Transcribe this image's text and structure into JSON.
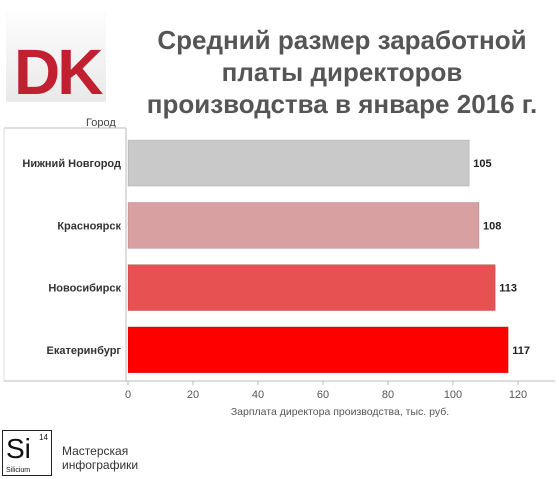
{
  "logo": {
    "text": "DK",
    "color": "#c0202f"
  },
  "chart_data": {
    "type": "bar",
    "orientation": "horizontal",
    "title": "Средний размер заработной платы директоров производства в январе 2016 г.",
    "title_lines": [
      "Средний размер заработной",
      "платы директоров",
      "производства в январе 2016 г."
    ],
    "ylabel": "Город",
    "xlabel": "Зарплата директора производства, тыс. руб.",
    "categories": [
      "Нижний Новгород",
      "Красноярск",
      "Новосибирск",
      "Екатеринбург"
    ],
    "values": [
      105,
      108,
      113,
      117
    ],
    "colors": [
      "#c9c9c9",
      "#d9a0a2",
      "#e85151",
      "#ff0000"
    ],
    "xlim": [
      0,
      125
    ],
    "xticks": [
      0,
      20,
      40,
      60,
      80,
      100,
      120
    ],
    "grid": false,
    "data_labels": true
  },
  "credit": {
    "element_symbol": "Si",
    "element_number": "14",
    "element_name": "Silicium",
    "lines": [
      "Мастерская",
      "инфографики"
    ]
  }
}
